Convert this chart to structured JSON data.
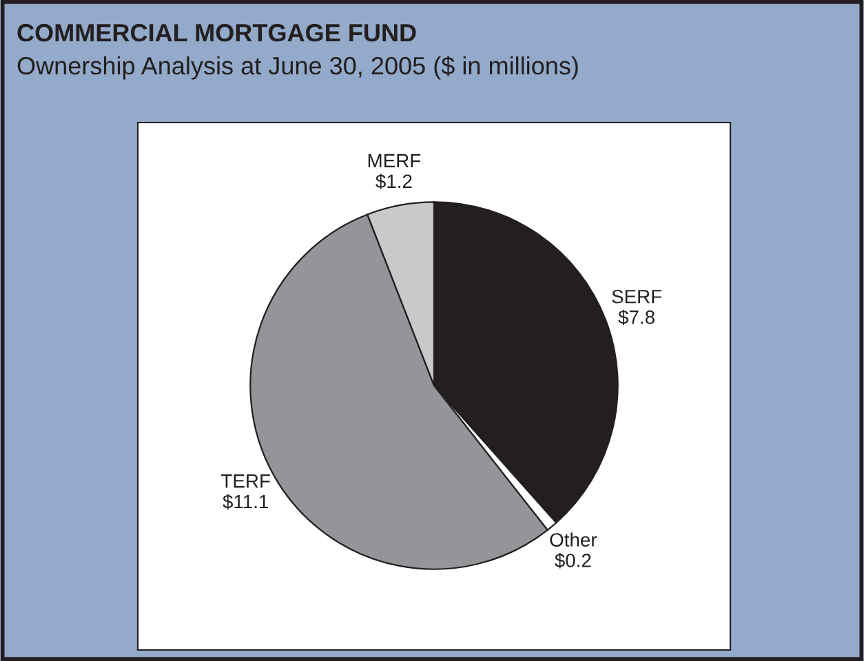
{
  "chart_data": {
    "type": "pie",
    "title": "COMMERCIAL MORTGAGE FUND",
    "subtitle": "Ownership Analysis at June 30, 2005 ($ in millions)",
    "categories": [
      "SERF",
      "Other",
      "TERF",
      "MERF"
    ],
    "values": [
      7.8,
      0.2,
      11.1,
      1.2
    ],
    "value_labels": [
      "$7.8",
      "$0.2",
      "$11.1",
      "$1.2"
    ],
    "colors": [
      "#231f20",
      "#ffffff",
      "#939598",
      "#c8c9cb"
    ],
    "legend": false
  }
}
